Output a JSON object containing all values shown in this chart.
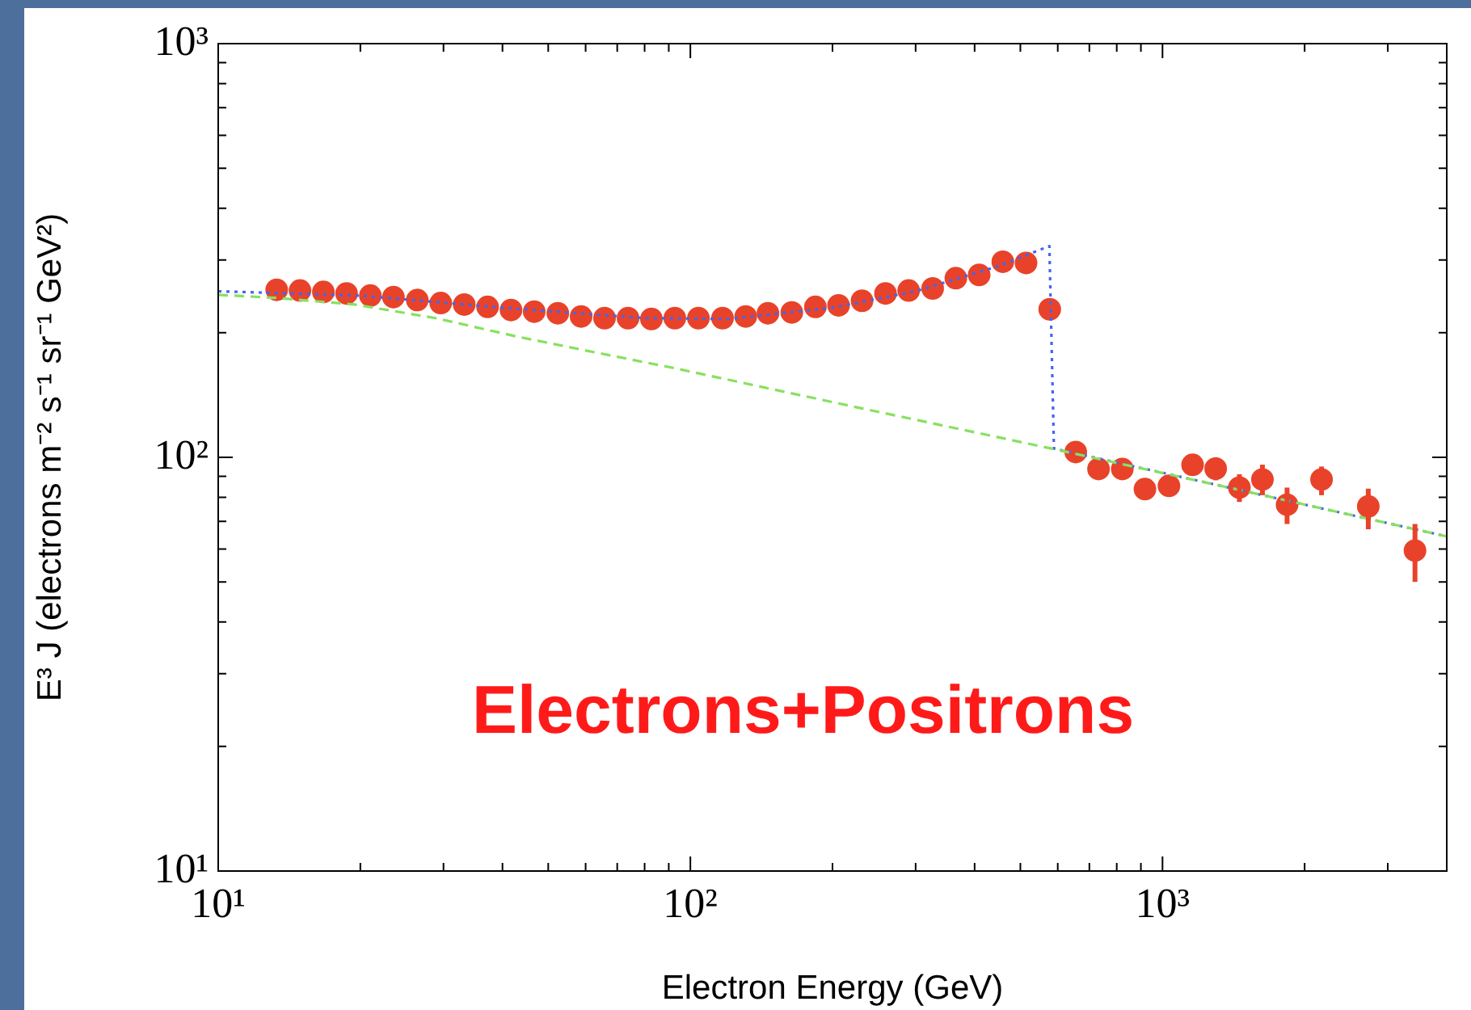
{
  "chart_data": {
    "type": "scatter",
    "xlabel": "Electron Energy (GeV)",
    "ylabel": "E³ J (electrons m⁻² s⁻¹ sr⁻¹ GeV²)",
    "log": "xy",
    "grid": false,
    "legend": false,
    "marker": "circle",
    "xlim": [
      10,
      4000
    ],
    "ylim": [
      10,
      1000
    ],
    "xticks": [
      {
        "value": 10,
        "label": "10¹"
      },
      {
        "value": 20,
        "label": null
      },
      {
        "value": 30,
        "label": null
      },
      {
        "value": 40,
        "label": null
      },
      {
        "value": 50,
        "label": null
      },
      {
        "value": 60,
        "label": null
      },
      {
        "value": 70,
        "label": null
      },
      {
        "value": 80,
        "label": null
      },
      {
        "value": 90,
        "label": null
      },
      {
        "value": 100,
        "label": "10²"
      },
      {
        "value": 200,
        "label": null
      },
      {
        "value": 300,
        "label": null
      },
      {
        "value": 400,
        "label": null
      },
      {
        "value": 500,
        "label": null
      },
      {
        "value": 600,
        "label": null
      },
      {
        "value": 700,
        "label": null
      },
      {
        "value": 800,
        "label": null
      },
      {
        "value": 900,
        "label": null
      },
      {
        "value": 1000,
        "label": "10³"
      },
      {
        "value": 2000,
        "label": null
      },
      {
        "value": 3000,
        "label": null
      },
      {
        "value": 4000,
        "label": null
      }
    ],
    "yticks": [
      {
        "value": 10,
        "label": "10¹"
      },
      {
        "value": 20,
        "label": null
      },
      {
        "value": 30,
        "label": null
      },
      {
        "value": 40,
        "label": null
      },
      {
        "value": 50,
        "label": null
      },
      {
        "value": 60,
        "label": null
      },
      {
        "value": 70,
        "label": null
      },
      {
        "value": 80,
        "label": null
      },
      {
        "value": 90,
        "label": null
      },
      {
        "value": 100,
        "label": "10²"
      },
      {
        "value": 200,
        "label": null
      },
      {
        "value": 300,
        "label": null
      },
      {
        "value": 400,
        "label": null
      },
      {
        "value": 500,
        "label": null
      },
      {
        "value": 600,
        "label": null
      },
      {
        "value": 700,
        "label": null
      },
      {
        "value": 800,
        "label": null
      },
      {
        "value": 900,
        "label": null
      },
      {
        "value": 1000,
        "label": "10³"
      }
    ],
    "annotations": [
      "Electrons+Positrons"
    ],
    "series": [
      {
        "type": "line",
        "color": "#88e060",
        "line_style": "dashed",
        "marker": "none",
        "x": [
          10,
          13.2,
          19.5,
          28.9,
          42.8,
          63.4,
          93.1,
          206,
          582,
          1469,
          4000
        ],
        "values": [
          247,
          243,
          234,
          217,
          196,
          179,
          164,
          135,
          105,
          83.2,
          64.4
        ]
      },
      {
        "type": "line",
        "color": "#4466ee",
        "line_style": "dotted",
        "marker": "none",
        "x": [
          10,
          20,
          40,
          80,
          120,
          200,
          300,
          450,
          576,
          589,
          1469,
          4000
        ],
        "values": [
          252,
          246,
          230,
          217,
          216,
          230,
          252,
          290,
          324,
          105,
          83.2,
          64.4
        ]
      },
      {
        "color": "#e8432a",
        "x": [
          13.3,
          14.9,
          16.7,
          18.7,
          21.0,
          23.5,
          26.4,
          29.6,
          33.2,
          37.2,
          41.7,
          46.7,
          52.4,
          58.7,
          65.8,
          73.8,
          82.7,
          92.7,
          104,
          117,
          131,
          146,
          164,
          184,
          206,
          231,
          259,
          290,
          326,
          365,
          409,
          459,
          514,
          577,
          655,
          732,
          822,
          918,
          1032,
          1158,
          1296,
          1455,
          1628,
          1836,
          2172,
          2728,
          3426
        ],
        "values": [
          254,
          253,
          251,
          249,
          246,
          244,
          240,
          236,
          234,
          231,
          227,
          225,
          223,
          219,
          217,
          217,
          216,
          217,
          217,
          217,
          219,
          223,
          224,
          231,
          233,
          239,
          249,
          253,
          256,
          271,
          276,
          297,
          295,
          228,
          103,
          93.7,
          93.7,
          83.8,
          85.3,
          95.9,
          93.9,
          84.5,
          88.4,
          76.8,
          88.4,
          76.1,
          59.5
        ],
        "errors": [
          null,
          null,
          null,
          null,
          null,
          null,
          null,
          null,
          null,
          null,
          null,
          null,
          null,
          null,
          null,
          null,
          null,
          null,
          null,
          null,
          null,
          null,
          null,
          null,
          null,
          null,
          null,
          null,
          null,
          null,
          null,
          null,
          null,
          null,
          null,
          null,
          null,
          null,
          null,
          [
            91,
            101
          ],
          [
            88,
            100
          ],
          [
            78,
            91
          ],
          [
            81,
            96
          ],
          [
            69,
            84.5
          ],
          [
            81,
            95
          ],
          [
            67,
            84
          ],
          [
            50,
            69
          ]
        ]
      }
    ]
  }
}
